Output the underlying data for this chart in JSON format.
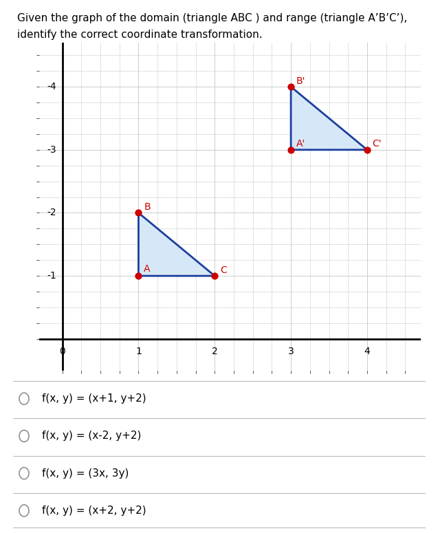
{
  "xlim": [
    -0.3,
    4.7
  ],
  "ylim": [
    -0.5,
    4.7
  ],
  "xticks": [
    0,
    1,
    2,
    3,
    4
  ],
  "yticks": [
    0,
    1,
    2,
    3,
    4
  ],
  "ytick_labels": [
    "",
    "-1",
    "-2",
    "-3",
    "-4"
  ],
  "xtick_labels": [
    "0",
    "1",
    "2",
    "3",
    "4"
  ],
  "triangle_ABC": {
    "A": [
      1,
      1
    ],
    "B": [
      1,
      2
    ],
    "C": [
      2,
      1
    ]
  },
  "triangle_A1B1C1": {
    "A1": [
      3,
      3
    ],
    "B1": [
      3,
      4
    ],
    "C1": [
      4,
      3
    ]
  },
  "triangle_color_fill": "#d6e8f7",
  "triangle_edge_color": "#1a3fa0",
  "point_color": "#cc0000",
  "point_size": 55,
  "edge_linewidth": 2.0,
  "grid_color": "#cccccc",
  "background_color": "#ffffff",
  "options": [
    "f(x, y) = (x+1, y+2)",
    "f(x, y) = (x-2, y+2)",
    "f(x, y) = (3x, 3y)",
    "f(x, y) = (x+2, y+2)"
  ],
  "option_fontsize": 11,
  "label_fontsize": 10,
  "label_color": "#cc0000",
  "title_line1": "Given the graph of the domain (triangle ABC ) and range (triangle A’B’C’),",
  "title_line2": "identify the correct coordinate transformation.",
  "title_fontsize": 11
}
